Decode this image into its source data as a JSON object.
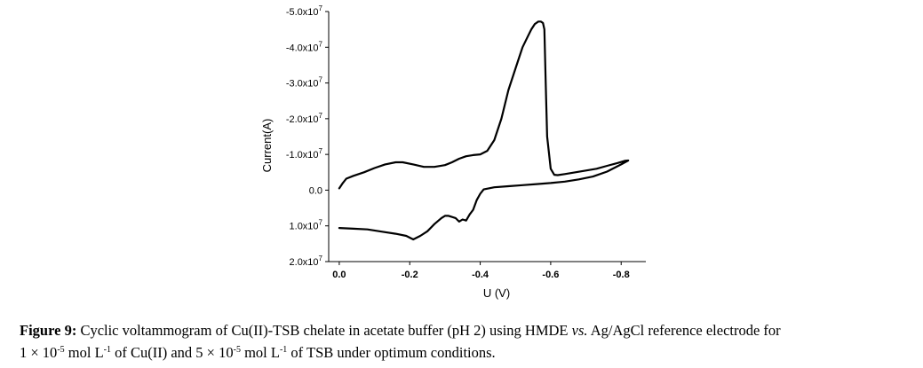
{
  "chart_data": {
    "type": "line",
    "title": "",
    "xlabel": "U (V)",
    "ylabel": "Current(A)",
    "xlim": [
      0.03,
      -0.87
    ],
    "ylim": [
      2e-07,
      -5e-07
    ],
    "x_ticks": [
      {
        "value": 0.0,
        "label": "0.0"
      },
      {
        "value": -0.2,
        "label": "-0.2"
      },
      {
        "value": -0.4,
        "label": "-0.4"
      },
      {
        "value": -0.6,
        "label": "-0.6"
      },
      {
        "value": -0.8,
        "label": "-0.8"
      }
    ],
    "y_ticks": [
      {
        "value": -5e-07,
        "label": "-5.0x10",
        "exp": "7"
      },
      {
        "value": -4e-07,
        "label": "-4.0x10",
        "exp": "7"
      },
      {
        "value": -3e-07,
        "label": "-3.0x10",
        "exp": "7"
      },
      {
        "value": -2e-07,
        "label": "-2.0x10",
        "exp": "7"
      },
      {
        "value": -1e-07,
        "label": "-1.0x10",
        "exp": "7"
      },
      {
        "value": 0.0,
        "label": "0.0",
        "exp": ""
      },
      {
        "value": 1e-07,
        "label": "1.0x10",
        "exp": "7"
      },
      {
        "value": 2e-07,
        "label": "2.0x10",
        "exp": "7"
      }
    ],
    "grid": false,
    "series": [
      {
        "x": [
          0.0,
          -0.01,
          -0.02,
          -0.04,
          -0.07,
          -0.1,
          -0.13,
          -0.16,
          -0.18,
          -0.21,
          -0.24,
          -0.27,
          -0.3,
          -0.32,
          -0.34,
          -0.36,
          -0.38,
          -0.4,
          -0.42,
          -0.44,
          -0.46,
          -0.48,
          -0.5,
          -0.51,
          -0.52,
          -0.535,
          -0.545,
          -0.555,
          -0.565,
          -0.572,
          -0.578,
          -0.582,
          -0.586,
          -0.59,
          -0.6,
          -0.61,
          -0.62,
          -0.64,
          -0.67,
          -0.7,
          -0.73,
          -0.76,
          -0.79,
          -0.81,
          -0.82,
          -0.8,
          -0.76,
          -0.72,
          -0.68,
          -0.64,
          -0.6,
          -0.56,
          -0.52,
          -0.48,
          -0.44,
          -0.41,
          -0.4,
          -0.39,
          -0.38,
          -0.37,
          -0.36,
          -0.35,
          -0.34,
          -0.33,
          -0.31,
          -0.3,
          -0.29,
          -0.27,
          -0.25,
          -0.23,
          -0.21,
          -0.19,
          -0.16,
          -0.12,
          -0.08,
          -0.04,
          0.0
        ],
        "y": [
          -5e-09,
          -2e-08,
          -3.2e-08,
          -4e-08,
          -5e-08,
          -6.2e-08,
          -7.2e-08,
          -7.8e-08,
          -7.8e-08,
          -7.2e-08,
          -6.5e-08,
          -6.5e-08,
          -7e-08,
          -7.8e-08,
          -8.8e-08,
          -9.5e-08,
          -9.8e-08,
          -1e-07,
          -1.1e-07,
          -1.4e-07,
          -2e-07,
          -2.8e-07,
          -3.4e-07,
          -3.7e-07,
          -4e-07,
          -4.3e-07,
          -4.5e-07,
          -4.65e-07,
          -4.72e-07,
          -4.72e-07,
          -4.68e-07,
          -4.5e-07,
          -3e-07,
          -1.5e-07,
          -6e-08,
          -4.3e-08,
          -4.2e-08,
          -4.5e-08,
          -5e-08,
          -5.5e-08,
          -6e-08,
          -6.8e-08,
          -7.6e-08,
          -8.2e-08,
          -8.3e-08,
          -7.2e-08,
          -5.2e-08,
          -3.8e-08,
          -3e-08,
          -2.4e-08,
          -2e-08,
          -1.7e-08,
          -1.4e-08,
          -1.1e-08,
          -8e-09,
          -2e-09,
          1e-08,
          2.8e-08,
          5.5e-08,
          6.8e-08,
          8.5e-08,
          8.2e-08,
          8.8e-08,
          7.8e-08,
          7.2e-08,
          7.2e-08,
          7.8e-08,
          9.5e-08,
          1.15e-07,
          1.28e-07,
          1.38e-07,
          1.28e-07,
          1.22e-07,
          1.16e-07,
          1.1e-07,
          1.08e-07,
          1.06e-07
        ]
      }
    ]
  },
  "caption": {
    "lead": "Figure 9:",
    "part1": " Cyclic voltammogram of Cu(II)-TSB chelate in acetate buffer (pH 2) using HMDE ",
    "vs": "vs.",
    "part2": " Ag/AgCl reference electrode for",
    "line2_a": "1 × 10",
    "line2_a_sup": "-5",
    "line2_b": " mol L",
    "line2_b_sup": "-1",
    "line2_c": " of  Cu(II) and 5 × 10",
    "line2_c_sup": "-5",
    "line2_d": " mol L",
    "line2_d_sup": "-1",
    "line2_e": " of TSB under optimum conditions."
  }
}
